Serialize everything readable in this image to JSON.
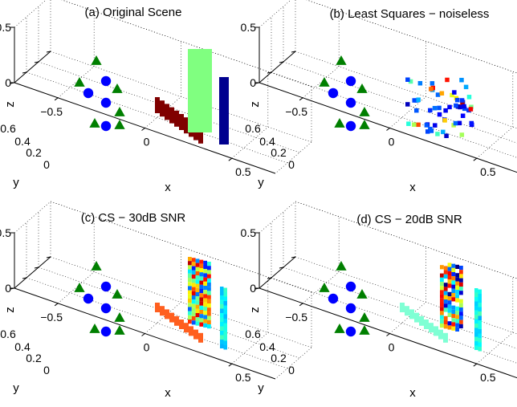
{
  "chart_data": [
    {
      "type": "scatter3d",
      "title": "(a) Original Scene",
      "xlabel": "x",
      "ylabel": "y",
      "zlabel": "z",
      "xticks": [
        "−0.5",
        "0",
        "0.5"
      ],
      "yticks": [
        "0",
        "0.2",
        "0.4",
        "0.6"
      ],
      "zticks": [
        "0",
        "0.5"
      ],
      "grid": true,
      "objects": [
        {
          "kind": "triangles",
          "color": "#007f00",
          "points": [
            [
              0.15,
              0.08
            ],
            [
              0.02,
              0.05
            ],
            [
              0.33,
              0.04
            ],
            [
              0.36,
              0.01
            ],
            [
              0.18,
              -0.02
            ],
            [
              0.42,
              -0.04
            ]
          ]
        },
        {
          "kind": "circles",
          "color": "#0000ff",
          "points": [
            [
              0.28,
              0.07
            ],
            [
              0.12,
              0.04
            ],
            [
              0.31,
              0.01
            ]
          ]
        },
        {
          "kind": "panel",
          "label": "ground strip",
          "color": "#800000"
        },
        {
          "kind": "panel",
          "label": "wall",
          "color": "#80ff80"
        },
        {
          "kind": "panel",
          "label": "side wall",
          "color": "#00008f"
        }
      ]
    },
    {
      "type": "scatter3d",
      "title": "(b) Least Squares − noiseless",
      "xlabel": "x",
      "ylabel": "y",
      "zlabel": "z",
      "xticks": [
        "−0.5",
        "0",
        "0.5"
      ],
      "yticks": [
        "0",
        "0.2",
        "0.4",
        "0.6"
      ],
      "zticks": [
        "0",
        "0.5"
      ],
      "grid": true,
      "objects": [
        {
          "kind": "triangles",
          "color": "#007f00"
        },
        {
          "kind": "circles",
          "color": "#0000ff"
        },
        {
          "kind": "scattered-voxels",
          "colormap": "jet",
          "count": 60
        }
      ]
    },
    {
      "type": "scatter3d",
      "title": "(c) CS − 30dB SNR",
      "xlabel": "x",
      "ylabel": "y",
      "zlabel": "z",
      "xticks": [
        "−0.5",
        "0",
        "0.5"
      ],
      "yticks": [
        "0",
        "0.2",
        "0.4",
        "0.6"
      ],
      "zticks": [
        "0",
        "0.5"
      ],
      "grid": true,
      "objects": [
        {
          "kind": "triangles",
          "color": "#007f00"
        },
        {
          "kind": "circles",
          "color": "#0000ff"
        },
        {
          "kind": "panel",
          "label": "ground strip",
          "color": "#ff5f1f"
        },
        {
          "kind": "voxel-panel",
          "label": "wall",
          "colormap": "jet"
        },
        {
          "kind": "voxel-panel",
          "label": "side wall",
          "colormap": "jet"
        }
      ]
    },
    {
      "type": "scatter3d",
      "title": "(d) CS − 20dB SNR",
      "xlabel": "x",
      "ylabel": "y",
      "zlabel": "z",
      "xticks": [
        "−0.5",
        "0",
        "0.5"
      ],
      "yticks": [
        "0",
        "0.2",
        "0.4",
        "0.6"
      ],
      "zticks": [
        "0",
        "0.5"
      ],
      "grid": true,
      "objects": [
        {
          "kind": "triangles",
          "color": "#007f00"
        },
        {
          "kind": "circles",
          "color": "#0000ff"
        },
        {
          "kind": "panel",
          "label": "ground strip",
          "color": "#7fffd4"
        },
        {
          "kind": "voxel-panel",
          "label": "wall",
          "colormap": "jet"
        },
        {
          "kind": "voxel-panel",
          "label": "side wall",
          "colormap": "jet"
        }
      ]
    }
  ]
}
